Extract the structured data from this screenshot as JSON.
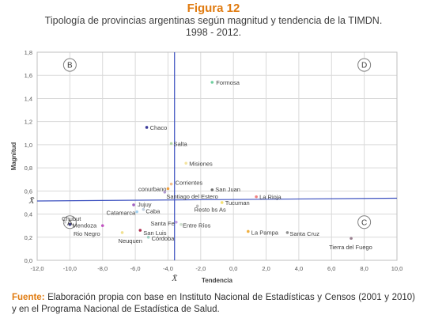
{
  "figure_label": "Figura 12",
  "title_line1": "Tipología de provincias argentinas según magnitud y tendencia de la TIMDN.",
  "title_line2": "1998 - 2012.",
  "source_label": "Fuente:",
  "source_text": "Elaboración propia con base en Instituto Nacional de Estadísticas y Censos (2001 y 2010) y en el Programa Nacional de Estadística de Salud.",
  "chart_data": {
    "type": "scatter",
    "xlabel": "Tendencia",
    "ylabel": "Magnitud",
    "xlim": [
      -12,
      10
    ],
    "ylim": [
      0,
      1.8
    ],
    "xticks": [
      "-12,0",
      "-10,0",
      "-8,0",
      "-6,0",
      "-4,0",
      "-2,0",
      "0,0",
      "2,0",
      "4,0",
      "6,0",
      "8,0",
      "10,0"
    ],
    "yticks": [
      "0,0",
      "0,2",
      "0,4",
      "0,6",
      "0,8",
      "1,0",
      "1,2",
      "1,4",
      "1,6",
      "1,8"
    ],
    "grid": true,
    "mean_x_label": "X̄",
    "mean_y_label": "X̄",
    "mean_x": -3.6,
    "mean_y": 0.52,
    "quadrants": [
      "A",
      "B",
      "C",
      "D"
    ],
    "points": [
      {
        "label": "Formosa",
        "x": -1.3,
        "y": 1.54,
        "color": "#6fcf9f"
      },
      {
        "label": "Chaco",
        "x": -5.3,
        "y": 1.15,
        "color": "#3b3b9a"
      },
      {
        "label": "Salta",
        "x": -3.8,
        "y": 1.01,
        "color": "#b5d7a8"
      },
      {
        "label": "Misiones",
        "x": -2.9,
        "y": 0.84,
        "color": "#f4e4a0"
      },
      {
        "label": "Corrientes",
        "x": -3.8,
        "y": 0.66,
        "color": "#f0c090"
      },
      {
        "label": "conurbano",
        "x": -4.0,
        "y": 0.62,
        "color": "#f0a040"
      },
      {
        "label": "Santiago del Estero",
        "x": -4.2,
        "y": 0.59,
        "color": "#b09ad0"
      },
      {
        "label": "San Juan",
        "x": -1.3,
        "y": 0.61,
        "color": "#707070"
      },
      {
        "label": "La Rioja",
        "x": 1.4,
        "y": 0.55,
        "color": "#f08080"
      },
      {
        "label": "Tucuman",
        "x": -0.7,
        "y": 0.5,
        "color": "#f4e070"
      },
      {
        "label": "Resto bs As",
        "x": -2.2,
        "y": 0.47,
        "color": "#c0c0c0"
      },
      {
        "label": "Jujuy",
        "x": -6.1,
        "y": 0.48,
        "color": "#a060c0"
      },
      {
        "label": "Caba",
        "x": -5.5,
        "y": 0.44,
        "color": "#c0d0e0"
      },
      {
        "label": "Catamarca",
        "x": -5.9,
        "y": 0.42,
        "color": "#a0d0f0"
      },
      {
        "label": "San Luis",
        "x": -5.7,
        "y": 0.26,
        "color": "#b03050"
      },
      {
        "label": "Entre Ríos",
        "x": -3.2,
        "y": 0.31,
        "color": "#d0e0d0"
      },
      {
        "label": "Santa Fe",
        "x": -3.5,
        "y": 0.33,
        "color": "#c0a0e0"
      },
      {
        "label": "Córdoba",
        "x": -5.2,
        "y": 0.2,
        "color": "#9ad0c0"
      },
      {
        "label": "Chubut",
        "x": -10.3,
        "y": 0.33,
        "color": "#d0d0d0"
      },
      {
        "label": "Mendoza",
        "x": -10.0,
        "y": 0.31,
        "color": "#404080"
      },
      {
        "label": "Rio Negro",
        "x": -8.0,
        "y": 0.3,
        "color": "#c050c0"
      },
      {
        "label": "Neuquen",
        "x": -6.8,
        "y": 0.24,
        "color": "#f0e090"
      },
      {
        "label": "La Pampa",
        "x": 0.9,
        "y": 0.25,
        "color": "#f0b040"
      },
      {
        "label": "Santa Cruz",
        "x": 3.3,
        "y": 0.24,
        "color": "#909090"
      },
      {
        "label": "Tierra del Fuego",
        "x": 7.2,
        "y": 0.19,
        "color": "#9a8090"
      }
    ]
  }
}
